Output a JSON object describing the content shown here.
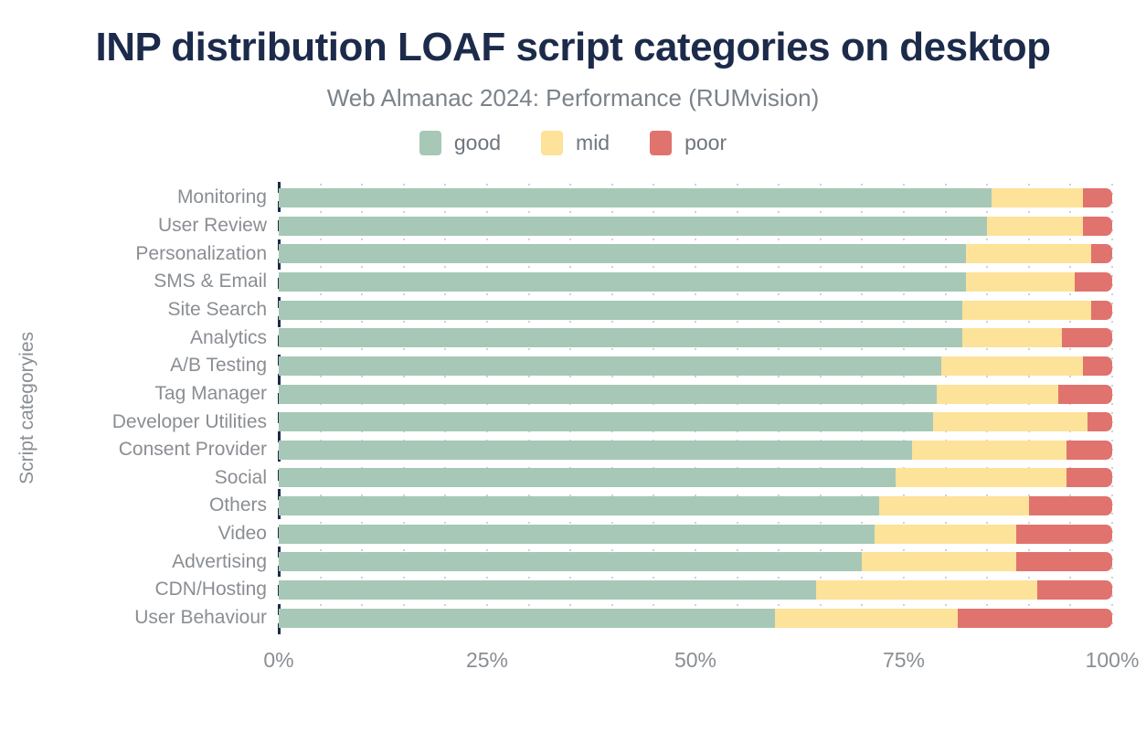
{
  "title": "INP distribution LOAF script categories on desktop",
  "subtitle": "Web Almanac 2024: Performance (RUMvision)",
  "legend": [
    {
      "label": "good",
      "color": "#a7c8b6"
    },
    {
      "label": "mid",
      "color": "#fde29a"
    },
    {
      "label": "poor",
      "color": "#e0736d"
    }
  ],
  "colors": {
    "title_text": "#1d2b4b",
    "axis_line": "#1d2b4b",
    "muted_text": "#8a8e93",
    "gridline": "#cdd2d7",
    "background": "#ffffff",
    "good": "#a7c8b6",
    "mid": "#fde29a",
    "poor": "#e0736d"
  },
  "chart_data": {
    "type": "bar",
    "orientation": "horizontal",
    "stacked": true,
    "title": "INP distribution LOAF script categories on desktop",
    "subtitle": "Web Almanac 2024: Performance (RUMvision)",
    "xlabel": "",
    "ylabel": "Script categoryies",
    "xlim": [
      0,
      100
    ],
    "x_ticks": [
      "0%",
      "25%",
      "50%",
      "75%",
      "100%"
    ],
    "x_tick_values": [
      0,
      25,
      50,
      75,
      100
    ],
    "grid": "dotted vertical gridlines every 5%",
    "legend_position": "top",
    "unit": "%",
    "categories": [
      "Monitoring",
      "User Review",
      "Personalization",
      "SMS & Email",
      "Site Search",
      "Analytics",
      "A/B Testing",
      "Tag Manager",
      "Developer Utilities",
      "Consent Provider",
      "Social",
      "Others",
      "Video",
      "Advertising",
      "CDN/Hosting",
      "User Behaviour"
    ],
    "series": [
      {
        "name": "good",
        "color": "#a7c8b6",
        "values": [
          85.5,
          85,
          82.5,
          82.5,
          82,
          82,
          79.5,
          79,
          78.5,
          76,
          74,
          72,
          71.5,
          70,
          64.5,
          59.5
        ]
      },
      {
        "name": "mid",
        "color": "#fde29a",
        "values": [
          11,
          11.5,
          15,
          13,
          15.5,
          12,
          17,
          14.5,
          18.5,
          18.5,
          20.5,
          18,
          17,
          18.5,
          26.5,
          22
        ]
      },
      {
        "name": "poor",
        "color": "#e0736d",
        "values": [
          3.5,
          3.5,
          2.5,
          4.5,
          2.5,
          6,
          3.5,
          6.5,
          3,
          5.5,
          5.5,
          10,
          11.5,
          11.5,
          9,
          18.5
        ]
      }
    ]
  }
}
